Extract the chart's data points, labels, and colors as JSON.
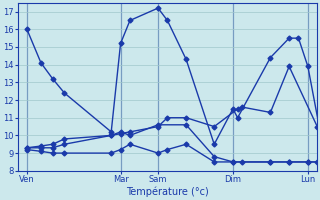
{
  "background_color": "#cce8ec",
  "grid_color": "#a0c8cc",
  "line_color": "#1a3aaa",
  "marker": "D",
  "markersize": 2.5,
  "linewidth": 1.0,
  "ylim": [
    8,
    17.5
  ],
  "yticks": [
    8,
    9,
    10,
    11,
    12,
    13,
    14,
    15,
    16,
    17
  ],
  "xlabel": "Température (°c)",
  "xtick_labels": [
    "Ven",
    "Mar",
    "Sam",
    "Dim",
    "Lun"
  ],
  "xtick_positions": [
    0,
    40,
    56,
    88,
    120
  ],
  "xlim": [
    -4,
    124
  ],
  "series": [
    {
      "x": [
        0,
        6,
        11,
        16,
        36,
        40,
        44,
        56,
        60,
        68,
        80,
        88,
        90,
        104,
        112,
        116,
        120,
        126,
        128
      ],
      "y": [
        16.0,
        14.1,
        13.2,
        12.4,
        10.2,
        15.2,
        16.5,
        17.2,
        16.5,
        14.3,
        9.5,
        11.5,
        11.0,
        14.4,
        15.5,
        15.5,
        13.9,
        9.7,
        8.3
      ]
    },
    {
      "x": [
        0,
        6,
        11,
        16,
        36,
        40,
        44,
        56,
        60,
        68,
        80,
        90,
        92,
        104,
        112,
        124,
        126,
        128
      ],
      "y": [
        9.3,
        9.4,
        9.5,
        9.8,
        10.0,
        10.1,
        10.2,
        10.5,
        11.0,
        11.0,
        10.5,
        11.5,
        11.6,
        11.3,
        13.9,
        10.5,
        10.2,
        8.4
      ]
    },
    {
      "x": [
        0,
        6,
        11,
        16,
        36,
        40,
        44,
        56,
        60,
        68,
        80,
        88,
        92,
        104,
        112,
        120,
        126,
        128
      ],
      "y": [
        9.2,
        9.1,
        9.0,
        9.0,
        9.0,
        9.2,
        9.5,
        9.0,
        9.2,
        9.5,
        8.5,
        8.5,
        8.5,
        8.5,
        8.5,
        8.5,
        8.5,
        8.3
      ]
    },
    {
      "x": [
        0,
        6,
        11,
        16,
        36,
        40,
        44,
        56,
        68,
        80,
        88,
        104,
        112,
        120,
        124,
        128
      ],
      "y": [
        9.3,
        9.3,
        9.3,
        9.5,
        10.0,
        10.2,
        10.0,
        10.6,
        10.6,
        8.8,
        8.5,
        8.5,
        8.5,
        8.5,
        8.5,
        8.3
      ]
    }
  ]
}
